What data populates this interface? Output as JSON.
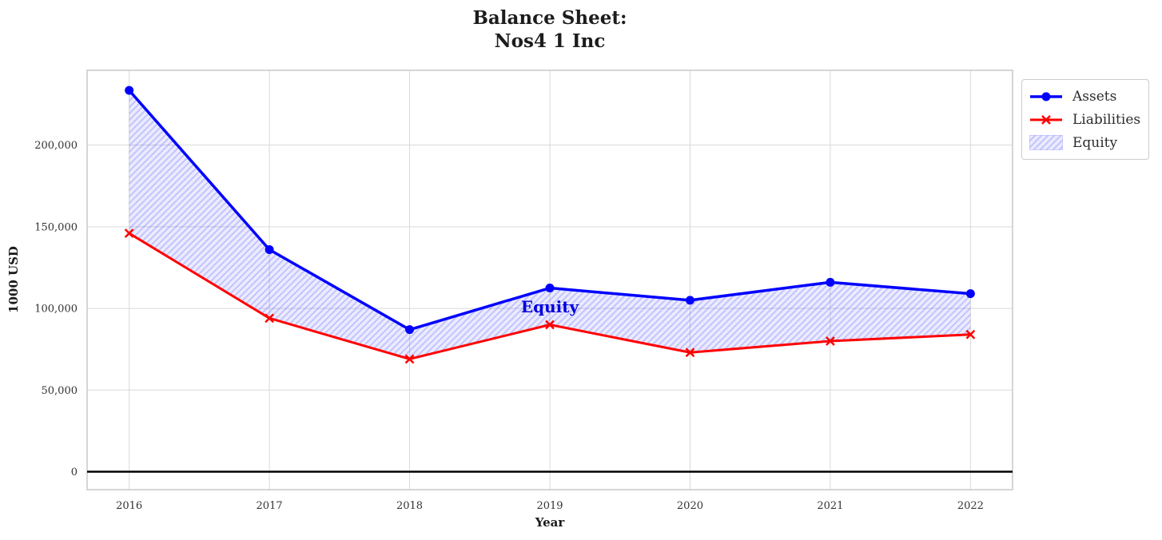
{
  "chart_data": {
    "type": "line",
    "title": "Balance Sheet:\nNos4 1 Inc",
    "xlabel": "Year",
    "ylabel": "1000 USD",
    "x": [
      2016,
      2017,
      2018,
      2019,
      2020,
      2021,
      2022
    ],
    "series": [
      {
        "name": "Assets",
        "values": [
          233500,
          136000,
          87000,
          112500,
          105000,
          116000,
          109000
        ],
        "color": "#0000ff",
        "marker": "circle"
      },
      {
        "name": "Liabilities",
        "values": [
          146000,
          94000,
          69000,
          90000,
          73000,
          80000,
          84000
        ],
        "color": "#ff0000",
        "marker": "x"
      }
    ],
    "fill_between": {
      "name": "Equity",
      "upper": "Assets",
      "lower": "Liabilities",
      "fill_color": "rgba(0,0,255,0.08)",
      "hatch_color": "rgba(0,0,255,0.17)",
      "hatch": "//",
      "values_implied": [
        87500,
        42000,
        18000,
        22500,
        32000,
        36000,
        25000
      ]
    },
    "annotation": {
      "text": "Equity",
      "x": 2019,
      "y": 101000,
      "color": "#0000dd"
    },
    "xlim": [
      2015.7,
      2022.3
    ],
    "ylim": [
      -11000,
      245800
    ],
    "xticks": [
      {
        "value": 2016,
        "label": "2016"
      },
      {
        "value": 2017,
        "label": "2017"
      },
      {
        "value": 2018,
        "label": "2018"
      },
      {
        "value": 2019,
        "label": "2019"
      },
      {
        "value": 2020,
        "label": "2020"
      },
      {
        "value": 2021,
        "label": "2021"
      },
      {
        "value": 2022,
        "label": "2022"
      }
    ],
    "yticks": [
      {
        "value": 0,
        "label": "0"
      },
      {
        "value": 50000,
        "label": "50,000"
      },
      {
        "value": 100000,
        "label": "100,000"
      },
      {
        "value": 150000,
        "label": "150,000"
      },
      {
        "value": 200000,
        "label": "200,000"
      }
    ],
    "zero_line": {
      "value": 0,
      "color": "#000000"
    },
    "grid": true,
    "grid_color": "#d9d9d9",
    "spine_color": "#c8c8c8",
    "legend_position": "outside-top-right"
  }
}
